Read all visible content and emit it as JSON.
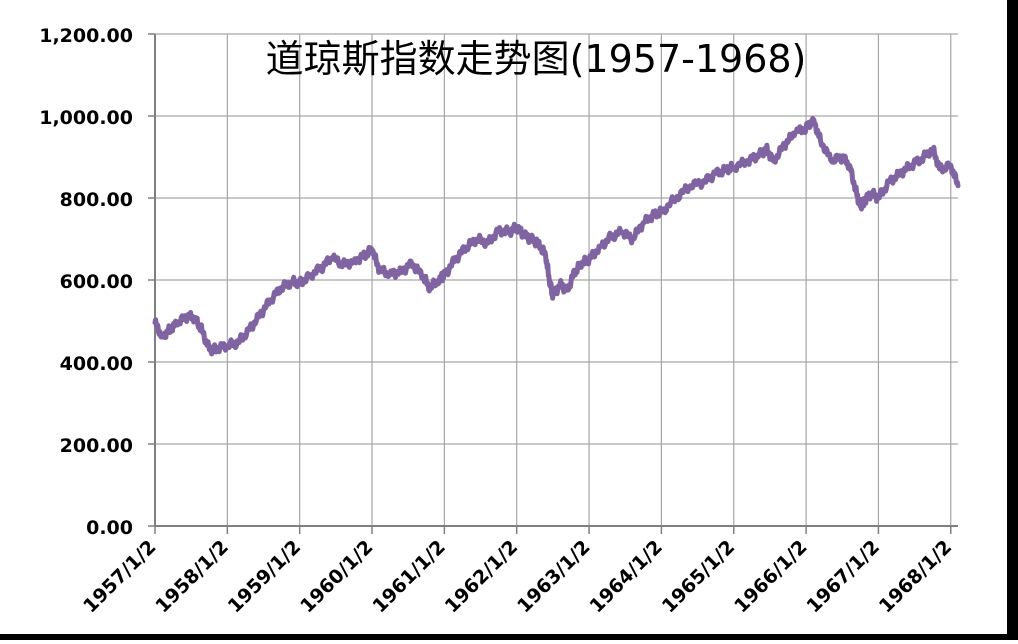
{
  "chart_data": {
    "type": "line",
    "title": "道琼斯指数走势图(1957-1968)",
    "xlabel": "",
    "ylabel": "",
    "ylim": [
      0,
      1200
    ],
    "yticks": [
      0,
      200,
      400,
      600,
      800,
      1000,
      1200
    ],
    "ytick_labels": [
      "0.00",
      "200.00",
      "400.00",
      "600.00",
      "800.00",
      "1,000.00",
      "1,200.00"
    ],
    "xlim": [
      1957.0,
      1968.1
    ],
    "xticks": [
      1957,
      1958,
      1959,
      1960,
      1961,
      1962,
      1963,
      1964,
      1965,
      1966,
      1967,
      1968
    ],
    "xtick_labels": [
      "1957/1/2",
      "1958/1/2",
      "1959/1/2",
      "1960/1/2",
      "1961/1/2",
      "1962/1/2",
      "1963/1/2",
      "1964/1/2",
      "1965/1/2",
      "1966/1/2",
      "1967/1/2",
      "1968/1/2"
    ],
    "grid": true,
    "legend": "none",
    "series": [
      {
        "color": "#8064a2",
        "x": [
          1957.0,
          1957.1,
          1957.2,
          1957.3,
          1957.45,
          1957.55,
          1957.65,
          1957.75,
          1957.85,
          1958.0,
          1958.15,
          1958.3,
          1958.45,
          1958.6,
          1958.75,
          1958.9,
          1959.0,
          1959.15,
          1959.3,
          1959.45,
          1959.6,
          1959.75,
          1959.9,
          1960.0,
          1960.1,
          1960.25,
          1960.4,
          1960.55,
          1960.7,
          1960.8,
          1960.95,
          1961.0,
          1961.15,
          1961.3,
          1961.45,
          1961.6,
          1961.75,
          1961.9,
          1962.0,
          1962.1,
          1962.2,
          1962.3,
          1962.4,
          1962.45,
          1962.5,
          1962.6,
          1962.7,
          1962.8,
          1962.9,
          1963.0,
          1963.15,
          1963.3,
          1963.45,
          1963.6,
          1963.75,
          1963.9,
          1964.0,
          1964.2,
          1964.4,
          1964.6,
          1964.75,
          1964.9,
          1965.0,
          1965.2,
          1965.35,
          1965.45,
          1965.55,
          1965.7,
          1965.85,
          1966.0,
          1966.1,
          1966.2,
          1966.35,
          1966.5,
          1966.6,
          1966.7,
          1966.75,
          1966.8,
          1966.9,
          1967.0,
          1967.15,
          1967.3,
          1967.45,
          1967.6,
          1967.75,
          1967.85,
          1968.0,
          1968.1
        ],
        "values": [
          496,
          462,
          478,
          493,
          512,
          508,
          478,
          430,
          432,
          440,
          448,
          478,
          515,
          552,
          582,
          595,
          592,
          612,
          630,
          655,
          638,
          645,
          660,
          675,
          625,
          615,
          620,
          640,
          610,
          580,
          605,
          612,
          650,
          680,
          700,
          690,
          720,
          718,
          728,
          710,
          700,
          690,
          660,
          600,
          560,
          590,
          575,
          620,
          640,
          650,
          680,
          705,
          718,
          700,
          740,
          760,
          765,
          800,
          830,
          840,
          860,
          870,
          875,
          890,
          905,
          920,
          890,
          930,
          960,
          970,
          992,
          940,
          890,
          900,
          880,
          810,
          780,
          790,
          812,
          800,
          840,
          860,
          880,
          895,
          920,
          870,
          880,
          830
        ]
      }
    ]
  }
}
